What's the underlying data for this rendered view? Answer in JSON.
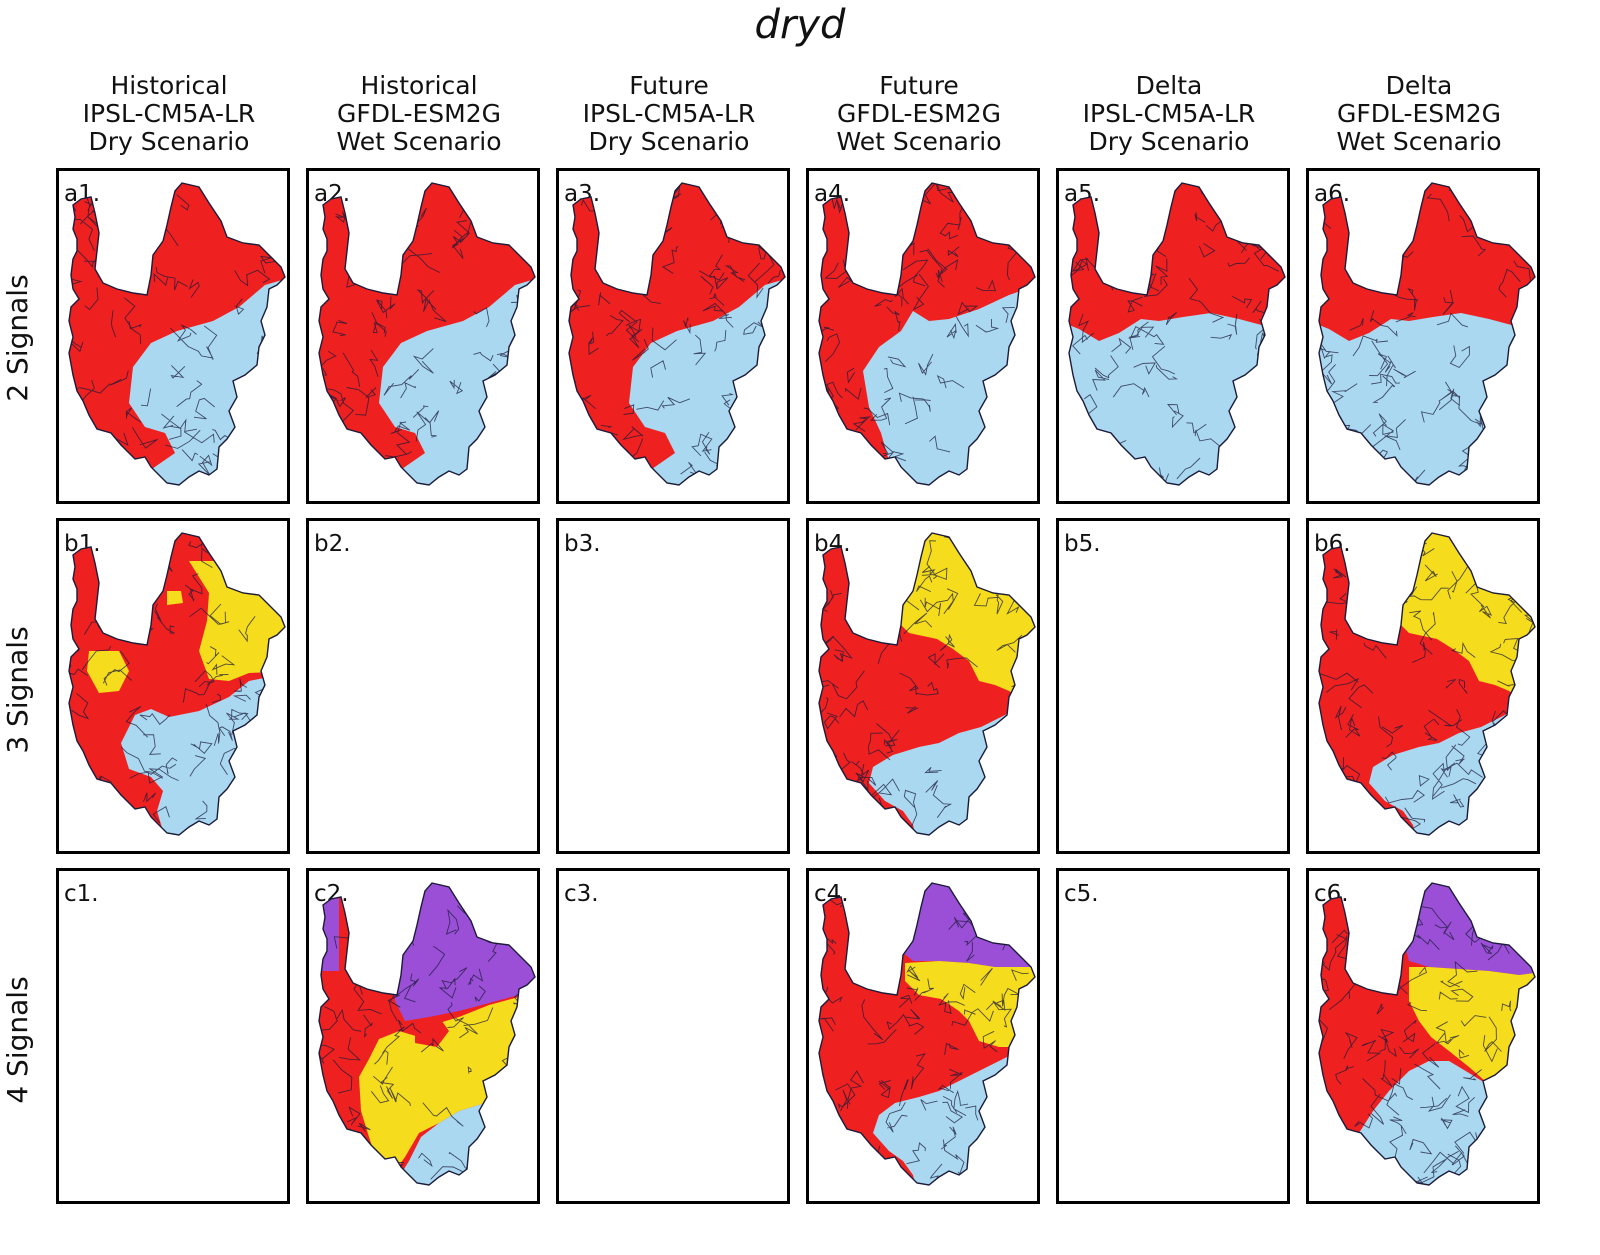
{
  "title": "dryd",
  "columns": [
    {
      "line1": "Historical",
      "line2": "IPSL-CM5A-LR",
      "line3": "Dry Scenario"
    },
    {
      "line1": "Historical",
      "line2": "GFDL-ESM2G",
      "line3": "Wet Scenario"
    },
    {
      "line1": "Future",
      "line2": "IPSL-CM5A-LR",
      "line3": "Dry Scenario"
    },
    {
      "line1": "Future",
      "line2": "GFDL-ESM2G",
      "line3": "Wet Scenario"
    },
    {
      "line1": "Delta",
      "line2": "IPSL-CM5A-LR",
      "line3": "Dry Scenario"
    },
    {
      "line1": "Delta",
      "line2": "GFDL-ESM2G",
      "line3": "Wet Scenario"
    }
  ],
  "rows": [
    {
      "label": "2 Signals"
    },
    {
      "label": "3 Signals"
    },
    {
      "label": "4 Signals"
    }
  ],
  "colors": {
    "red": "#ee2020",
    "blue": "#a9d8f0",
    "yellow": "#f5dc1c",
    "purple": "#9a4fd6",
    "outline": "#1b1b3a"
  },
  "panels": [
    {
      "id": "a1.",
      "pattern": "r2-west"
    },
    {
      "id": "a2.",
      "pattern": "r2-west"
    },
    {
      "id": "a3.",
      "pattern": "r2-west"
    },
    {
      "id": "a4.",
      "pattern": "r2-small"
    },
    {
      "id": "a5.",
      "pattern": "r2-north"
    },
    {
      "id": "a6.",
      "pattern": "r2-north"
    },
    {
      "id": "b1.",
      "pattern": "r3-east"
    },
    {
      "id": "b2.",
      "pattern": "empty"
    },
    {
      "id": "b3.",
      "pattern": "empty"
    },
    {
      "id": "b4.",
      "pattern": "r3-north"
    },
    {
      "id": "b5.",
      "pattern": "empty"
    },
    {
      "id": "b6.",
      "pattern": "r3-north"
    },
    {
      "id": "c1.",
      "pattern": "empty"
    },
    {
      "id": "c2.",
      "pattern": "r4-a"
    },
    {
      "id": "c3.",
      "pattern": "empty"
    },
    {
      "id": "c4.",
      "pattern": "r4-b"
    },
    {
      "id": "c5.",
      "pattern": "empty"
    },
    {
      "id": "c6.",
      "pattern": "r4-c"
    }
  ]
}
